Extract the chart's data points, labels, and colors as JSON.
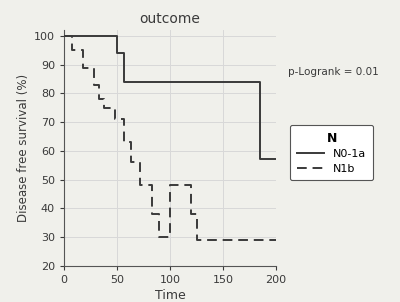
{
  "title": "outcome",
  "xlabel": "Time",
  "ylabel": "Disease free survival (%)",
  "xlim": [
    0,
    200
  ],
  "ylim": [
    20,
    102
  ],
  "xticks": [
    0,
    50,
    100,
    150,
    200
  ],
  "yticks": [
    20,
    30,
    40,
    50,
    60,
    70,
    80,
    90,
    100
  ],
  "plogrank_text": "p-Logrank = 0.01",
  "legend_title": "N",
  "legend_labels": [
    "N0-1a",
    "N1b"
  ],
  "line_color": "#3a3a3a",
  "background_color": "#f0f0eb",
  "grid_color": "#d8d8d8",
  "solid_x": [
    0,
    50,
    50,
    57,
    57,
    185,
    185,
    200
  ],
  "solid_y": [
    100,
    100,
    94,
    94,
    84,
    84,
    57,
    57
  ],
  "dashed_x": [
    0,
    8,
    8,
    18,
    18,
    28,
    28,
    33,
    33,
    38,
    38,
    48,
    48,
    57,
    57,
    63,
    63,
    72,
    72,
    83,
    83,
    90,
    90,
    100,
    100,
    120,
    120,
    125,
    125,
    200
  ],
  "dashed_y": [
    100,
    100,
    95,
    95,
    89,
    89,
    83,
    83,
    78,
    78,
    75,
    75,
    71,
    71,
    63,
    63,
    56,
    56,
    48,
    48,
    38,
    38,
    30,
    30,
    48,
    48,
    38,
    38,
    29,
    29
  ]
}
